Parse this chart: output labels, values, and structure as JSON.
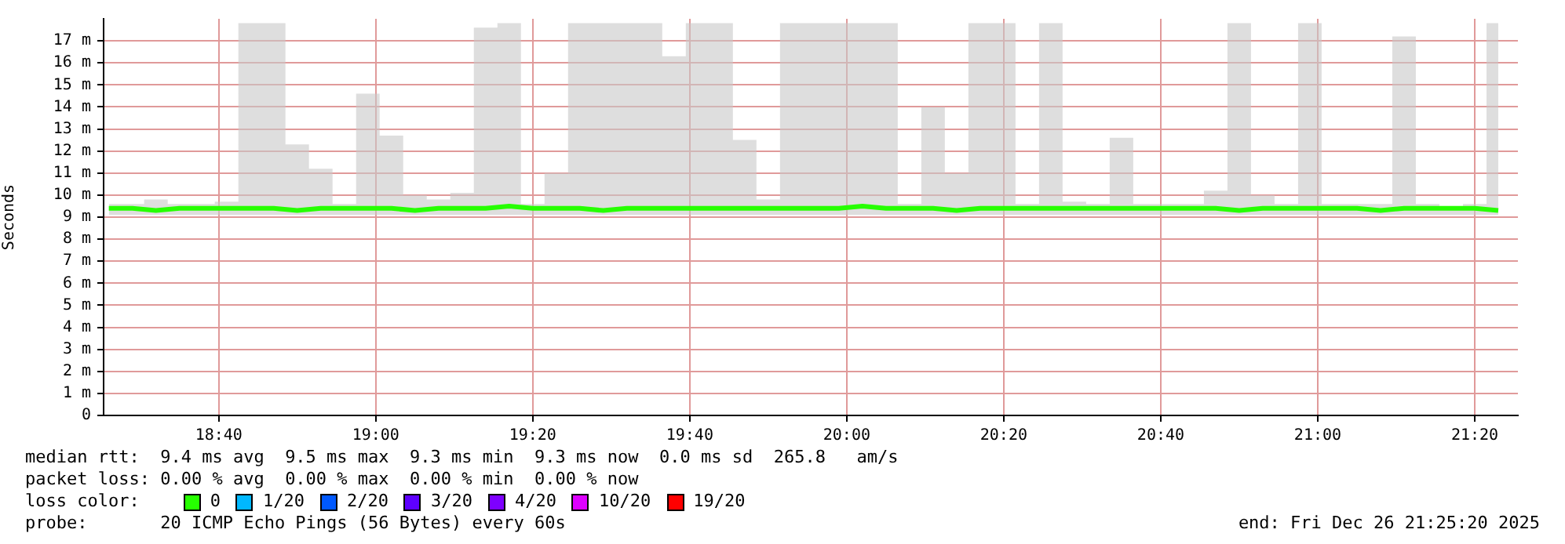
{
  "chart_data": {
    "type": "line",
    "ylabel": "Seconds",
    "legend_title": "loss color:",
    "legend": "bottom",
    "grid": true,
    "marker": "none",
    "line_style": "solid",
    "xlim": [
      18.4222,
      21.425
    ],
    "ylim": [
      0,
      18
    ],
    "xticks": [
      {
        "value": 18.6667,
        "label": "18:40"
      },
      {
        "value": 19,
        "label": "19:00"
      },
      {
        "value": 19.3333,
        "label": "19:20"
      },
      {
        "value": 19.6667,
        "label": "19:40"
      },
      {
        "value": 20,
        "label": "20:00"
      },
      {
        "value": 20.3333,
        "label": "20:20"
      },
      {
        "value": 20.6667,
        "label": "20:40"
      },
      {
        "value": 21,
        "label": "21:00"
      },
      {
        "value": 21.3333,
        "label": "21:20"
      }
    ],
    "yticks": [
      0,
      {
        "value": 1,
        "label": "1 m"
      },
      {
        "value": 2,
        "label": "2 m"
      },
      {
        "value": 3,
        "label": "3 m"
      },
      {
        "value": 4,
        "label": "4 m"
      },
      {
        "value": 5,
        "label": "5 m"
      },
      {
        "value": 6,
        "label": "6 m"
      },
      {
        "value": 7,
        "label": "7 m"
      },
      {
        "value": 8,
        "label": "8 m"
      },
      {
        "value": 9,
        "label": "9 m"
      },
      {
        "value": 10,
        "label": "10 m"
      },
      {
        "value": 11,
        "label": "11 m"
      },
      {
        "value": 12,
        "label": "12 m"
      },
      {
        "value": 13,
        "label": "13 m"
      },
      {
        "value": 14,
        "label": "14 m"
      },
      {
        "value": 15,
        "label": "15 m"
      },
      {
        "value": 16,
        "label": "16 m"
      },
      {
        "value": 17,
        "label": "17 m"
      }
    ],
    "x": [
      18.4333,
      18.4833,
      18.5333,
      18.5833,
      18.6333,
      18.6833,
      18.7333,
      18.7833,
      18.8333,
      18.8833,
      18.9333,
      18.9833,
      19.0333,
      19.0833,
      19.1333,
      19.1833,
      19.2333,
      19.2833,
      19.3333,
      19.3833,
      19.4333,
      19.4833,
      19.5333,
      19.5833,
      19.6333,
      19.6833,
      19.7333,
      19.7833,
      19.8333,
      19.8833,
      19.9333,
      19.9833,
      20.0333,
      20.0833,
      20.1333,
      20.1833,
      20.2333,
      20.2833,
      20.3333,
      20.3833,
      20.4333,
      20.4833,
      20.5333,
      20.5833,
      20.6333,
      20.6833,
      20.7333,
      20.7833,
      20.8333,
      20.8833,
      20.9333,
      20.9833,
      21.0333,
      21.0833,
      21.1333,
      21.1833,
      21.2333,
      21.2833,
      21.3333,
      21.3833
    ],
    "series": [
      {
        "name": "0",
        "color": "#26ff00",
        "lower": [
          9.1,
          9.1,
          9.1,
          9.1,
          9.1,
          9.1,
          9.1,
          9.1,
          9.1,
          9.1,
          9.1,
          9.1,
          9.1,
          9.1,
          9.1,
          9.1,
          9.1,
          9.1,
          9.1,
          9.1,
          9.1,
          9.1,
          9.1,
          9.1,
          9.1,
          9.1,
          9.1,
          9.1,
          9.1,
          9.1,
          9.1,
          9.1,
          9.1,
          9.1,
          9.1,
          9.1,
          9.1,
          9.1,
          9.1,
          9.1,
          9.1,
          9.1,
          9.1,
          9.1,
          9.1,
          9.1,
          9.1,
          9.1,
          9.1,
          9.1,
          9.1,
          9.1,
          9.1,
          9.1,
          9.1,
          9.1,
          9.1,
          9.1,
          9.1,
          9.1
        ],
        "upper": [
          9.6,
          9.6,
          9.8,
          9.6,
          9.6,
          9.7,
          17.8,
          17.8,
          12.3,
          11.2,
          9.6,
          14.6,
          12.7,
          10,
          9.8,
          10.1,
          17.6,
          17.8,
          9.6,
          11,
          17.8,
          17.8,
          17.8,
          17.8,
          16.3,
          17.8,
          17.8,
          12.5,
          9.8,
          17.8,
          17.8,
          17.8,
          17.8,
          17.8,
          9.6,
          14,
          11,
          17.8,
          17.8,
          9.6,
          17.8,
          9.7,
          9.6,
          12.6,
          9.6,
          9.6,
          9.6,
          10.2,
          17.8,
          10,
          9.6,
          17.8,
          9.6,
          9.6,
          9.6,
          17.2,
          9.6,
          9.5,
          9.6,
          17.8
        ],
        "values": [
          9.4,
          9.4,
          9.3,
          9.4,
          9.4,
          9.4,
          9.4,
          9.4,
          9.3,
          9.4,
          9.4,
          9.4,
          9.4,
          9.3,
          9.4,
          9.4,
          9.4,
          9.5,
          9.4,
          9.4,
          9.4,
          9.3,
          9.4,
          9.4,
          9.4,
          9.4,
          9.4,
          9.4,
          9.4,
          9.4,
          9.4,
          9.4,
          9.5,
          9.4,
          9.4,
          9.4,
          9.3,
          9.4,
          9.4,
          9.4,
          9.4,
          9.4,
          9.4,
          9.4,
          9.4,
          9.4,
          9.4,
          9.4,
          9.3,
          9.4,
          9.4,
          9.4,
          9.4,
          9.4,
          9.3,
          9.4,
          9.4,
          9.4,
          9.4,
          9.3
        ]
      },
      {
        "name": "1/20",
        "color": "#00b8ff",
        "values": [
          null,
          null,
          null,
          null,
          null,
          null,
          null,
          null,
          null,
          null,
          null,
          null,
          null,
          null,
          null,
          null,
          null,
          null,
          null,
          null,
          null,
          null,
          null,
          null,
          null,
          null,
          null,
          null,
          null,
          null,
          null,
          null,
          null,
          null,
          null,
          null,
          null,
          null,
          null,
          null,
          null,
          null,
          null,
          null,
          null,
          null,
          null,
          null,
          null,
          null,
          null,
          null,
          null,
          null,
          null,
          null,
          null,
          null,
          null,
          null
        ]
      },
      {
        "name": "2/20",
        "color": "#0059ff",
        "values": [
          null,
          null,
          null,
          null,
          null,
          null,
          null,
          null,
          null,
          null,
          null,
          null,
          null,
          null,
          null,
          null,
          null,
          null,
          null,
          null,
          null,
          null,
          null,
          null,
          null,
          null,
          null,
          null,
          null,
          null,
          null,
          null,
          null,
          null,
          null,
          null,
          null,
          null,
          null,
          null,
          null,
          null,
          null,
          null,
          null,
          null,
          null,
          null,
          null,
          null,
          null,
          null,
          null,
          null,
          null,
          null,
          null,
          null,
          null,
          null
        ]
      },
      {
        "name": "3/20",
        "color": "#5e00ff",
        "values": [
          null,
          null,
          null,
          null,
          null,
          null,
          null,
          null,
          null,
          null,
          null,
          null,
          null,
          null,
          null,
          null,
          null,
          null,
          null,
          null,
          null,
          null,
          null,
          null,
          null,
          null,
          null,
          null,
          null,
          null,
          null,
          null,
          null,
          null,
          null,
          null,
          null,
          null,
          null,
          null,
          null,
          null,
          null,
          null,
          null,
          null,
          null,
          null,
          null,
          null,
          null,
          null,
          null,
          null,
          null,
          null,
          null,
          null,
          null,
          null
        ]
      },
      {
        "name": "4/20",
        "color": "#7e00ff",
        "values": [
          null,
          null,
          null,
          null,
          null,
          null,
          null,
          null,
          null,
          null,
          null,
          null,
          null,
          null,
          null,
          null,
          null,
          null,
          null,
          null,
          null,
          null,
          null,
          null,
          null,
          null,
          null,
          null,
          null,
          null,
          null,
          null,
          null,
          null,
          null,
          null,
          null,
          null,
          null,
          null,
          null,
          null,
          null,
          null,
          null,
          null,
          null,
          null,
          null,
          null,
          null,
          null,
          null,
          null,
          null,
          null,
          null,
          null,
          null,
          null
        ]
      },
      {
        "name": "10/20",
        "color": "#dd00ff",
        "values": [
          null,
          null,
          null,
          null,
          null,
          null,
          null,
          null,
          null,
          null,
          null,
          null,
          null,
          null,
          null,
          null,
          null,
          null,
          null,
          null,
          null,
          null,
          null,
          null,
          null,
          null,
          null,
          null,
          null,
          null,
          null,
          null,
          null,
          null,
          null,
          null,
          null,
          null,
          null,
          null,
          null,
          null,
          null,
          null,
          null,
          null,
          null,
          null,
          null,
          null,
          null,
          null,
          null,
          null,
          null,
          null,
          null,
          null,
          null,
          null
        ]
      },
      {
        "name": "19/20",
        "color": "#ff0000",
        "values": [
          null,
          null,
          null,
          null,
          null,
          null,
          null,
          null,
          null,
          null,
          null,
          null,
          null,
          null,
          null,
          null,
          null,
          null,
          null,
          null,
          null,
          null,
          null,
          null,
          null,
          null,
          null,
          null,
          null,
          null,
          null,
          null,
          null,
          null,
          null,
          null,
          null,
          null,
          null,
          null,
          null,
          null,
          null,
          null,
          null,
          null,
          null,
          null,
          null,
          null,
          null,
          null,
          null,
          null,
          null,
          null,
          null,
          null,
          null,
          null
        ]
      }
    ],
    "annotations": [
      "median rtt:  9.4 ms avg  9.5 ms max  9.3 ms min  9.3 ms now  0.0 ms sd  265.8   am/s",
      "packet loss: 0.00 % avg  0.00 % max  0.00 % min  0.00 % now",
      "probe:       20 ICMP Echo Pings (56 Bytes) every 60s",
      "end: Fri Dec 26 21:25:20 2025"
    ]
  }
}
